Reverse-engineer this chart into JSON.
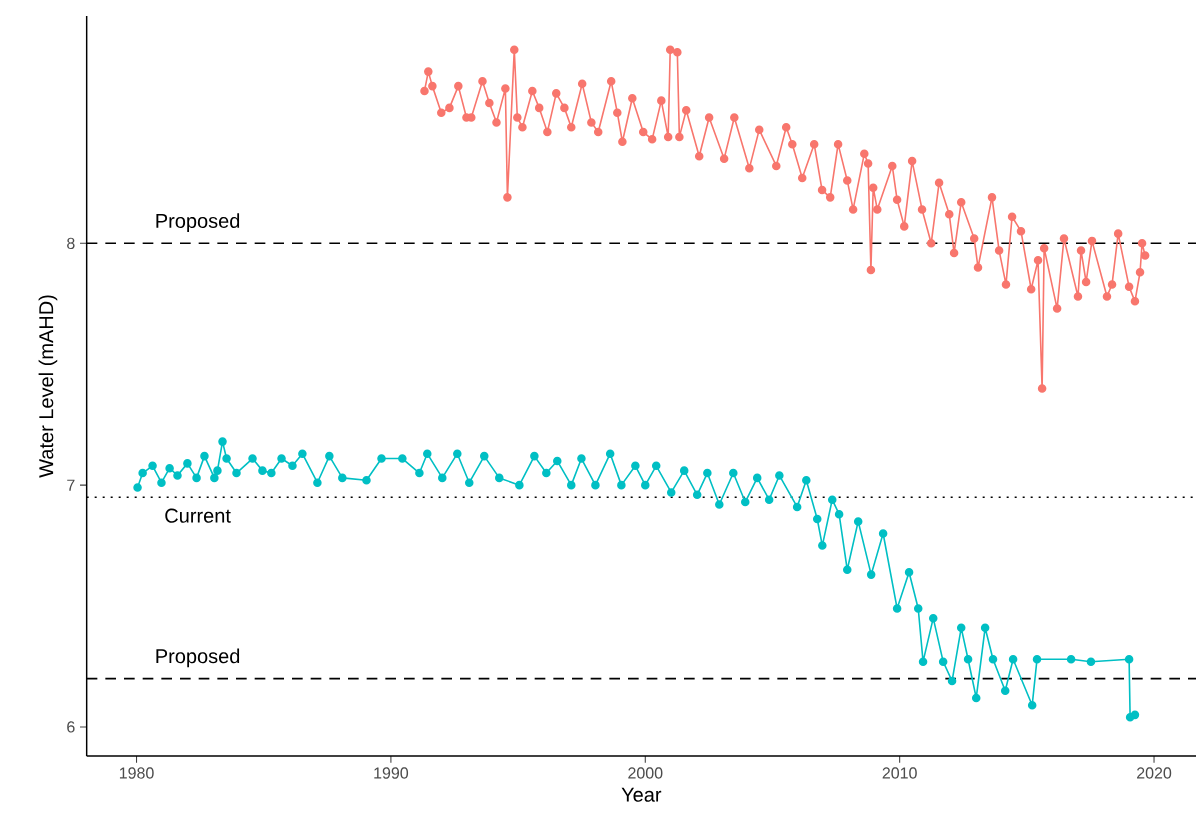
{
  "chart_data": {
    "type": "line",
    "xlabel": "Year",
    "ylabel": "Water Level (mAHD)",
    "marker": "circle",
    "line_style": "solid",
    "xlim": [
      1978.04,
      2021.65
    ],
    "ylim": [
      5.88,
      8.94
    ],
    "xticks": [
      1980,
      1990,
      2000,
      2010,
      2020
    ],
    "yticks": [
      6,
      7,
      8
    ],
    "series": [
      {
        "color": "#f8766d",
        "x": [
          1991.32,
          1991.47,
          1991.63,
          1991.98,
          1992.3,
          1992.65,
          1992.97,
          1993.16,
          1993.6,
          1993.87,
          1994.15,
          1994.5,
          1994.58,
          1994.85,
          1994.97,
          1995.17,
          1995.56,
          1995.83,
          1996.15,
          1996.5,
          1996.82,
          1997.09,
          1997.52,
          1997.88,
          1998.15,
          1998.66,
          1998.9,
          1999.1,
          1999.49,
          1999.92,
          2000.27,
          2000.63,
          2000.9,
          2000.98,
          2001.26,
          2001.34,
          2001.61,
          2002.12,
          2002.51,
          2003.1,
          2003.5,
          2004.09,
          2004.48,
          2005.15,
          2005.54,
          2005.78,
          2006.17,
          2006.64,
          2006.95,
          2007.27,
          2007.58,
          2007.94,
          2008.17,
          2008.61,
          2008.76,
          2008.87,
          2008.96,
          2009.12,
          2009.71,
          2009.9,
          2010.18,
          2010.49,
          2010.88,
          2011.24,
          2011.55,
          2011.95,
          2012.14,
          2012.42,
          2012.93,
          2013.08,
          2013.63,
          2013.91,
          2014.18,
          2014.42,
          2014.77,
          2015.17,
          2015.44,
          2015.6,
          2015.68,
          2016.19,
          2016.46,
          2017.01,
          2017.13,
          2017.33,
          2017.56,
          2018.15,
          2018.35,
          2018.59,
          2019.02,
          2019.25,
          2019.45,
          2019.53,
          2019.65
        ],
        "values": [
          8.63,
          8.71,
          8.65,
          8.54,
          8.56,
          8.65,
          8.52,
          8.52,
          8.67,
          8.58,
          8.5,
          8.64,
          8.19,
          8.8,
          8.52,
          8.48,
          8.63,
          8.56,
          8.46,
          8.62,
          8.56,
          8.48,
          8.66,
          8.5,
          8.46,
          8.67,
          8.54,
          8.42,
          8.6,
          8.46,
          8.43,
          8.59,
          8.44,
          8.8,
          8.79,
          8.44,
          8.55,
          8.36,
          8.52,
          8.35,
          8.52,
          8.31,
          8.47,
          8.32,
          8.48,
          8.41,
          8.27,
          8.41,
          8.22,
          8.19,
          8.41,
          8.26,
          8.14,
          8.37,
          8.33,
          7.89,
          8.23,
          8.14,
          8.32,
          8.18,
          8.07,
          8.34,
          8.14,
          8.0,
          8.25,
          8.12,
          7.96,
          8.17,
          8.02,
          7.9,
          8.19,
          7.97,
          7.83,
          8.11,
          8.05,
          7.81,
          7.93,
          7.4,
          7.98,
          7.73,
          8.02,
          7.78,
          7.97,
          7.84,
          8.01,
          7.78,
          7.83,
          8.04,
          7.82,
          7.76,
          7.88,
          8.0,
          7.95
        ]
      },
      {
        "color": "#00bfc4",
        "x": [
          1980.04,
          1980.24,
          1980.63,
          1980.98,
          1981.3,
          1981.61,
          1982.0,
          1982.36,
          1982.67,
          1983.06,
          1983.18,
          1983.38,
          1983.54,
          1983.93,
          1984.56,
          1984.95,
          1985.3,
          1985.7,
          1986.13,
          1986.52,
          1987.11,
          1987.58,
          1988.09,
          1989.04,
          1989.63,
          1990.45,
          1991.12,
          1991.43,
          1992.02,
          1992.61,
          1993.08,
          1993.67,
          1994.26,
          1995.05,
          1995.64,
          1996.11,
          1996.54,
          1997.09,
          1997.49,
          1998.04,
          1998.62,
          1999.06,
          1999.61,
          2000.0,
          2000.43,
          2001.02,
          2001.53,
          2002.04,
          2002.44,
          2002.91,
          2003.46,
          2003.93,
          2004.4,
          2004.87,
          2005.27,
          2005.97,
          2006.33,
          2006.76,
          2006.96,
          2007.35,
          2007.62,
          2007.94,
          2008.37,
          2008.88,
          2009.35,
          2009.9,
          2010.37,
          2010.73,
          2010.92,
          2011.32,
          2011.71,
          2012.06,
          2012.42,
          2012.69,
          2013.01,
          2013.36,
          2013.67,
          2014.15,
          2014.46,
          2015.21,
          2015.4,
          2016.74,
          2017.52,
          2019.02,
          2019.06,
          2019.25
        ],
        "values": [
          6.99,
          7.05,
          7.08,
          7.01,
          7.07,
          7.04,
          7.09,
          7.03,
          7.12,
          7.03,
          7.06,
          7.18,
          7.11,
          7.05,
          7.11,
          7.06,
          7.05,
          7.11,
          7.08,
          7.13,
          7.01,
          7.12,
          7.03,
          7.02,
          7.11,
          7.11,
          7.05,
          7.13,
          7.03,
          7.13,
          7.01,
          7.12,
          7.03,
          7.0,
          7.12,
          7.05,
          7.1,
          7.0,
          7.11,
          7.0,
          7.13,
          7.0,
          7.08,
          7.0,
          7.08,
          6.97,
          7.06,
          6.96,
          7.05,
          6.92,
          7.05,
          6.93,
          7.03,
          6.94,
          7.04,
          6.91,
          7.02,
          6.86,
          6.75,
          6.94,
          6.88,
          6.65,
          6.85,
          6.63,
          6.8,
          6.49,
          6.64,
          6.49,
          6.27,
          6.45,
          6.27,
          6.19,
          6.41,
          6.28,
          6.12,
          6.41,
          6.28,
          6.15,
          6.28,
          6.09,
          6.28,
          6.28,
          6.27,
          6.28,
          6.04,
          6.05
        ]
      }
    ],
    "ref_lines": [
      {
        "axis": "y",
        "value": 8,
        "label": "Proposed",
        "line_style": "dashed",
        "color": "#000000"
      },
      {
        "axis": "y",
        "value": 6.95,
        "label": "Current",
        "line_style": "dotted",
        "color": "#000000"
      },
      {
        "axis": "y",
        "value": 6.2,
        "label": "Proposed",
        "line_style": "dashed",
        "color": "#000000"
      }
    ]
  }
}
